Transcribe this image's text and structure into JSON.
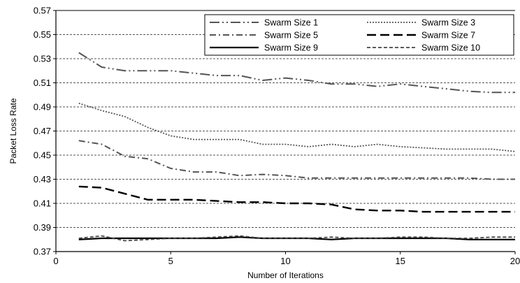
{
  "chart_data": {
    "type": "line",
    "title": "",
    "xlabel": "Number of Iterations",
    "ylabel": "Packet Loss Rate",
    "xlim": [
      0,
      20
    ],
    "ylim": [
      0.37,
      0.57
    ],
    "xticks": [
      "0",
      "5",
      "10",
      "15",
      "20"
    ],
    "yticks": [
      "0.37",
      "0.39",
      "0.41",
      "0.43",
      "0.45",
      "0.47",
      "0.49",
      "0.51",
      "0.53",
      "0.55",
      "0.57"
    ],
    "grid": "horizontal-dashed",
    "legend_position": "top-right",
    "x": [
      1,
      2,
      3,
      4,
      5,
      6,
      7,
      8,
      9,
      10,
      11,
      12,
      13,
      14,
      15,
      16,
      17,
      18,
      19,
      20
    ],
    "series": [
      {
        "name": "Swarm Size 1",
        "style": "long-dash-dot-dot",
        "color": "#555555",
        "values": [
          0.535,
          0.523,
          0.52,
          0.52,
          0.52,
          0.518,
          0.516,
          0.516,
          0.512,
          0.514,
          0.512,
          0.509,
          0.509,
          0.507,
          0.509,
          0.507,
          0.505,
          0.503,
          0.502,
          0.502
        ]
      },
      {
        "name": "Swarm Size 3",
        "style": "dotted",
        "color": "#555555",
        "values": [
          0.493,
          0.487,
          0.482,
          0.473,
          0.466,
          0.463,
          0.463,
          0.463,
          0.459,
          0.459,
          0.457,
          0.459,
          0.457,
          0.459,
          0.457,
          0.456,
          0.455,
          0.455,
          0.455,
          0.453
        ]
      },
      {
        "name": "Swarm Size 5",
        "style": "dash-dot",
        "color": "#555555",
        "values": [
          0.462,
          0.459,
          0.449,
          0.447,
          0.439,
          0.436,
          0.436,
          0.433,
          0.434,
          0.433,
          0.431,
          0.431,
          0.431,
          0.431,
          0.431,
          0.431,
          0.431,
          0.431,
          0.43,
          0.43
        ]
      },
      {
        "name": "Swarm Size 7",
        "style": "long-dash",
        "color": "#000000",
        "values": [
          0.424,
          0.423,
          0.418,
          0.413,
          0.413,
          0.413,
          0.412,
          0.411,
          0.411,
          0.41,
          0.41,
          0.409,
          0.405,
          0.404,
          0.404,
          0.403,
          0.403,
          0.403,
          0.403,
          0.403
        ]
      },
      {
        "name": "Swarm Size 9",
        "style": "solid",
        "color": "#000000",
        "values": [
          0.38,
          0.381,
          0.381,
          0.381,
          0.381,
          0.381,
          0.381,
          0.382,
          0.381,
          0.381,
          0.381,
          0.38,
          0.381,
          0.381,
          0.381,
          0.381,
          0.381,
          0.38,
          0.38,
          0.38
        ]
      },
      {
        "name": "Swarm Size 10",
        "style": "short-dash",
        "color": "#444444",
        "values": [
          0.381,
          0.383,
          0.379,
          0.38,
          0.381,
          0.381,
          0.382,
          0.383,
          0.381,
          0.381,
          0.381,
          0.382,
          0.381,
          0.381,
          0.382,
          0.382,
          0.381,
          0.381,
          0.382,
          0.382
        ]
      }
    ]
  }
}
